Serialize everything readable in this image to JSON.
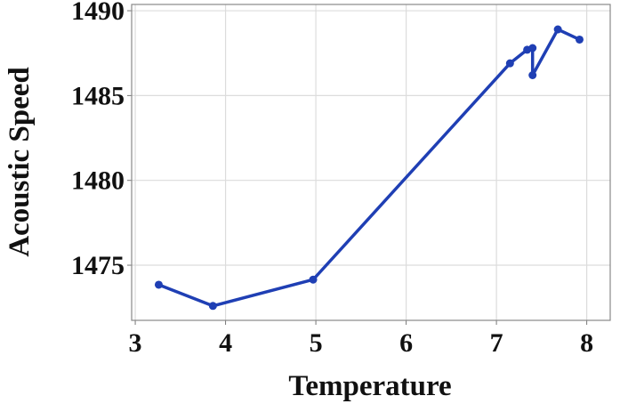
{
  "chart_data": {
    "type": "line",
    "x_label": "Temperature",
    "y_label": "Acoustic Speed",
    "x": [
      3.26,
      3.86,
      4.97,
      7.15,
      7.34,
      7.4,
      7.4,
      7.68,
      7.92
    ],
    "series": [
      {
        "color": "#1f3fb4",
        "values": [
          1473.85,
          1472.6,
          1474.15,
          1486.9,
          1487.7,
          1487.8,
          1486.2,
          1488.9,
          1488.3
        ]
      }
    ],
    "xlim": [
      2.96,
      8.26
    ],
    "ylim": [
      1471.75,
      1490.37
    ],
    "xticks": [
      3,
      4,
      5,
      6,
      7,
      8
    ],
    "yticks": [
      1475,
      1480,
      1485,
      1490
    ],
    "grid": true
  }
}
